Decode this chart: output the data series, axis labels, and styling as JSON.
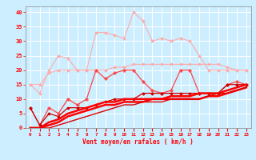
{
  "xlabel": "Vent moyen/en rafales ( km/h )",
  "x": [
    0,
    1,
    2,
    3,
    4,
    5,
    6,
    7,
    8,
    9,
    10,
    11,
    12,
    13,
    14,
    15,
    16,
    17,
    18,
    19,
    20,
    21,
    22,
    23
  ],
  "series": [
    {
      "name": "light_pink_spiky",
      "color": "#ffaaaa",
      "lw": 0.8,
      "marker": "D",
      "markersize": 1.8,
      "y": [
        15,
        12,
        20,
        25,
        24,
        20,
        20,
        33,
        33,
        32,
        31,
        40,
        37,
        30,
        31,
        30,
        31,
        30,
        25,
        20,
        20,
        20,
        20,
        20
      ]
    },
    {
      "name": "medium_pink_flat",
      "color": "#ffaaaa",
      "lw": 0.8,
      "marker": "D",
      "markersize": 1.8,
      "y": [
        15,
        15,
        19,
        20,
        20,
        20,
        20,
        20,
        20,
        21,
        21,
        22,
        22,
        22,
        22,
        22,
        22,
        22,
        22,
        22,
        22,
        21,
        20,
        20
      ]
    },
    {
      "name": "red_with_cross_markers",
      "color": "#ff4444",
      "lw": 0.9,
      "marker": "P",
      "markersize": 2.5,
      "y": [
        7,
        1,
        7,
        5,
        10,
        8,
        10,
        20,
        17,
        19,
        20,
        20,
        16,
        13,
        12,
        13,
        20,
        20,
        12,
        12,
        12,
        15,
        16,
        15
      ]
    },
    {
      "name": "red_with_diamond_markers",
      "color": "#cc0000",
      "lw": 0.9,
      "marker": "D",
      "markersize": 1.8,
      "y": [
        7,
        1,
        5,
        4,
        7,
        7,
        7,
        8,
        9,
        10,
        10,
        10,
        12,
        12,
        12,
        12,
        12,
        12,
        12,
        12,
        12,
        15,
        15,
        15
      ]
    },
    {
      "name": "red_thick_upper",
      "color": "#ff0000",
      "lw": 1.8,
      "marker": null,
      "y": [
        0,
        0,
        2,
        3,
        5,
        6,
        7,
        8,
        9,
        9,
        10,
        10,
        10,
        10,
        10,
        11,
        11,
        11,
        12,
        12,
        12,
        13,
        14,
        15
      ]
    },
    {
      "name": "red_thick_mid",
      "color": "#ff0000",
      "lw": 1.8,
      "marker": null,
      "y": [
        0,
        0,
        1,
        2,
        4,
        5,
        6,
        7,
        8,
        8,
        9,
        9,
        9,
        10,
        10,
        10,
        10,
        10,
        10,
        11,
        11,
        12,
        13,
        14
      ]
    },
    {
      "name": "red_thin_bottom",
      "color": "#dd0000",
      "lw": 1.0,
      "marker": null,
      "y": [
        0,
        0,
        0,
        1,
        2,
        3,
        4,
        5,
        6,
        7,
        8,
        8,
        9,
        9,
        9,
        10,
        10,
        10,
        10,
        11,
        12,
        12,
        13,
        14
      ]
    }
  ],
  "ylim": [
    0,
    42
  ],
  "yticks": [
    0,
    5,
    10,
    15,
    20,
    25,
    30,
    35,
    40
  ],
  "xticks": [
    0,
    1,
    2,
    3,
    4,
    5,
    6,
    7,
    8,
    9,
    10,
    11,
    12,
    13,
    14,
    15,
    16,
    17,
    18,
    19,
    20,
    21,
    22,
    23
  ],
  "bg_color": "#cceeff",
  "grid_color": "#ffffff",
  "tick_color": "#ff0000",
  "label_color": "#ff0000"
}
